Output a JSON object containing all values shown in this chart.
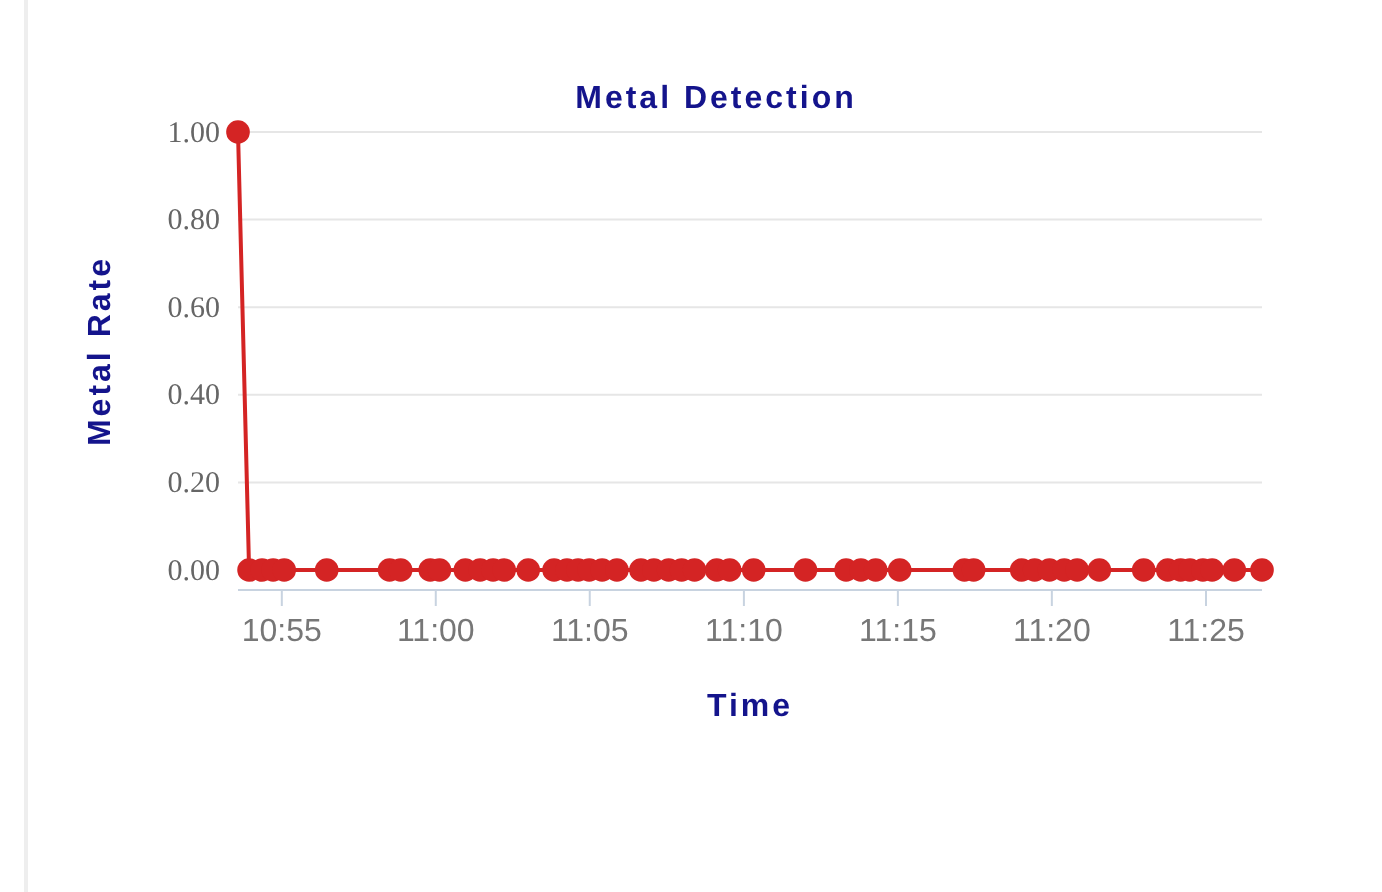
{
  "chart_data": {
    "type": "line",
    "title": "Metal Detection",
    "xlabel": "Time",
    "ylabel": "Metal Rate",
    "x": [
      10.893,
      10.899,
      10.906,
      10.912,
      10.918,
      10.941,
      10.975,
      10.981,
      10.997,
      11.002,
      11.016,
      11.024,
      11.031,
      11.037,
      11.05,
      11.064,
      11.071,
      11.077,
      11.083,
      11.09,
      11.098,
      11.111,
      11.118,
      11.126,
      11.133,
      11.14,
      11.152,
      11.159,
      11.172,
      11.2,
      11.222,
      11.23,
      11.238,
      11.251,
      11.286,
      11.291,
      11.317,
      11.324,
      11.332,
      11.34,
      11.347,
      11.359,
      11.383,
      11.396,
      11.403,
      11.408,
      11.415,
      11.42,
      11.432,
      11.447
    ],
    "series": [
      {
        "color": "#d42424",
        "values": [
          1,
          0,
          0,
          0,
          0,
          0,
          0,
          0,
          0,
          0,
          0,
          0,
          0,
          0,
          0,
          0,
          0,
          0,
          0,
          0,
          0,
          0,
          0,
          0,
          0,
          0,
          0,
          0,
          0,
          0,
          0,
          0,
          0,
          0,
          0,
          0,
          0,
          0,
          0,
          0,
          0,
          0,
          0,
          0,
          0,
          0,
          0,
          0,
          0,
          0
        ]
      }
    ],
    "xlim": [
      10.893,
      11.447
    ],
    "xticks": [
      {
        "value": 10.9167,
        "label": "10:55"
      },
      {
        "value": 11,
        "label": "11:00"
      },
      {
        "value": 11.0833,
        "label": "11:05"
      },
      {
        "value": 11.1667,
        "label": "11:10"
      },
      {
        "value": 11.25,
        "label": "11:15"
      },
      {
        "value": 11.3333,
        "label": "11:20"
      },
      {
        "value": 11.4167,
        "label": "11:25"
      }
    ],
    "ylim": [
      0,
      1
    ],
    "yticks": [
      {
        "value": 0,
        "label": "0.00"
      },
      {
        "value": 0.2,
        "label": "0.20"
      },
      {
        "value": 0.4,
        "label": "0.40"
      },
      {
        "value": 0.6,
        "label": "0.60"
      },
      {
        "value": 0.8,
        "label": "0.80"
      },
      {
        "value": 1,
        "label": "1.00"
      }
    ],
    "grid": "y",
    "marker": "circle",
    "line_style": "solid"
  }
}
